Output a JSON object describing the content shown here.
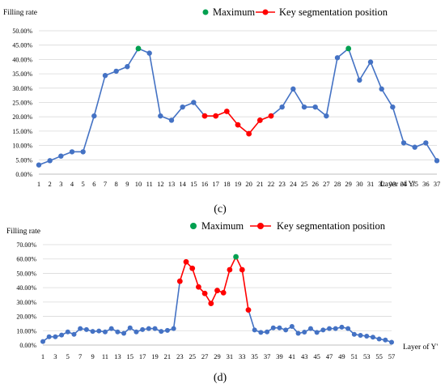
{
  "chart_data": [
    {
      "type": "line",
      "panel_label": "(c)",
      "ylabel": "Filling rate",
      "xlabel": "Layer of Y'",
      "yticks": [
        "0.00%",
        "5.00%",
        "10.00%",
        "15.00%",
        "20.00%",
        "25.00%",
        "30.00%",
        "35.00%",
        "40.00%",
        "45.00%",
        "50.00%"
      ],
      "ylim": [
        0,
        50
      ],
      "x_start": 1,
      "x_tick_labels": [
        "1",
        "2",
        "3",
        "4",
        "5",
        "6",
        "7",
        "8",
        "9",
        "10",
        "11",
        "12",
        "13",
        "14",
        "15",
        "16",
        "17",
        "18",
        "19",
        "20",
        "21",
        "22",
        "23",
        "24",
        "25",
        "26",
        "27",
        "28",
        "29",
        "30",
        "31",
        "32",
        "33",
        "34",
        "35",
        "36",
        "37"
      ],
      "values": [
        3.2,
        4.7,
        6.3,
        7.8,
        7.8,
        20.3,
        34.4,
        35.9,
        37.5,
        43.8,
        42.2,
        20.3,
        18.8,
        23.4,
        25.0,
        20.3,
        20.3,
        21.9,
        17.2,
        14.1,
        18.8,
        20.3,
        23.4,
        29.7,
        23.4,
        23.4,
        20.3,
        40.6,
        43.8,
        32.8,
        39.1,
        29.7,
        23.4,
        10.9,
        9.4,
        10.9,
        4.7
      ],
      "colors": {
        "line": "#4472c4",
        "maximum": "#00a050",
        "key": "#ff0000"
      },
      "maximum_x": [
        10,
        29
      ],
      "key_segment_x": [
        16,
        22
      ],
      "legend": [
        {
          "label": "Maximum",
          "kind": "maximum"
        },
        {
          "label": "Key segmentation position",
          "kind": "key"
        }
      ]
    },
    {
      "type": "line",
      "panel_label": "(d)",
      "ylabel": "Filling rate",
      "xlabel": "Layer of Y'",
      "yticks": [
        "0.00%",
        "10.00%",
        "20.00%",
        "30.00%",
        "40.00%",
        "50.00%",
        "60.00%",
        "70.00%"
      ],
      "ylim": [
        0,
        70
      ],
      "x_start": 1,
      "x_tick_labels": [
        "1",
        "3",
        "5",
        "7",
        "9",
        "11",
        "13",
        "15",
        "17",
        "19",
        "21",
        "23",
        "25",
        "27",
        "29",
        "31",
        "33",
        "35",
        "37",
        "39",
        "41",
        "43",
        "45",
        "47",
        "49",
        "51",
        "53",
        "55",
        "57"
      ],
      "values": [
        2.5,
        5.8,
        5.8,
        7.0,
        9.2,
        7.5,
        11.5,
        10.8,
        9.5,
        9.8,
        9.2,
        11.5,
        9.2,
        8.2,
        12.0,
        9.2,
        10.8,
        11.5,
        11.5,
        9.5,
        10.2,
        11.5,
        44.5,
        58.0,
        53.5,
        40.5,
        36.0,
        29.0,
        38.0,
        36.5,
        52.5,
        61.5,
        52.5,
        24.5,
        10.5,
        8.8,
        9.2,
        12.0,
        12.0,
        10.5,
        13.0,
        8.2,
        9.0,
        11.5,
        8.8,
        10.5,
        11.5,
        11.5,
        12.5,
        11.5,
        7.5,
        6.8,
        6.2,
        5.5,
        4.2,
        3.5,
        2.0
      ],
      "colors": {
        "line": "#4472c4",
        "maximum": "#00a050",
        "key": "#ff0000"
      },
      "maximum_x": [
        32
      ],
      "key_segment_x": [
        23,
        34
      ],
      "legend": [
        {
          "label": "Maximum",
          "kind": "maximum"
        },
        {
          "label": "Key segmentation position",
          "kind": "key"
        }
      ]
    }
  ]
}
